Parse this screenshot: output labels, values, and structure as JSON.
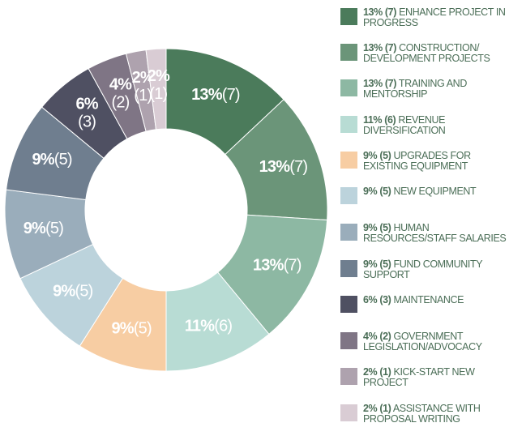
{
  "chart_data": {
    "type": "donut",
    "categories": [
      "ENHANCE PROJECT IN PROGRESS",
      "CONSTRUCTION/ DEVELOPMENT PROJECTS",
      "TRAINING AND MENTORSHIP",
      "REVENUE DIVERSIFICATION",
      "UPGRADES FOR EXISTING EQUIPMENT",
      "NEW EQUIPMENT",
      "HUMAN RESOURCES/STAFF SALARIES",
      "FUND COMMUNITY SUPPORT",
      "MAINTENANCE",
      "GOVERNMENT LEGISLATION/ADVOCACY",
      "KICK-START NEW PROJECT",
      "ASSISTANCE WITH PROPOSAL WRITING"
    ],
    "values": [
      13,
      13,
      13,
      11,
      9,
      9,
      9,
      9,
      6,
      4,
      2,
      2
    ],
    "value_labels": [
      "13%",
      "13%",
      "13%",
      "11%",
      "9%",
      "9%",
      "9%",
      "9%",
      "6%",
      "4%",
      "2%",
      "2%"
    ],
    "counts": [
      7,
      7,
      7,
      6,
      5,
      5,
      5,
      5,
      3,
      2,
      1,
      1
    ],
    "count_labels": [
      "(7)",
      "(7)",
      "(7)",
      "(6)",
      "(5)",
      "(5)",
      "(5)",
      "(5)",
      "(3)",
      "(2)",
      "(1)",
      "(1)"
    ],
    "colors": [
      "#4b7b5b",
      "#6b9579",
      "#8db8a3",
      "#b8dcd4",
      "#f7cda3",
      "#bcd3dc",
      "#9aadbb",
      "#6f7e8f",
      "#4f5062",
      "#7f7585",
      "#aea2ae",
      "#d9ccd4"
    ]
  }
}
